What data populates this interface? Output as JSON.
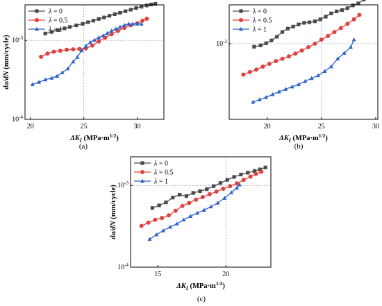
{
  "figure": {
    "captions": [
      "(a)",
      "(b)",
      "(c)"
    ]
  },
  "chart_data": [
    {
      "type": "line",
      "panel": "(a)",
      "xlabel": "ΔK_I (MPa·m^1/2)",
      "ylabel": "da/dN (mm/cycle)",
      "xlim": [
        19.5,
        32.5
      ],
      "ylim_log10": [
        -4,
        -2.55
      ],
      "yscale": "log",
      "xticks": [
        20,
        25,
        30
      ],
      "yticks": [
        {
          "value": 0.0001,
          "base": "10",
          "exp": "-4"
        },
        {
          "value": 0.001,
          "base": "10",
          "exp": "-3"
        }
      ],
      "grid": "dashed reference lines at x=25 and y=1e-3",
      "legend_position": "top-left",
      "series": [
        {
          "name": "λ = 0",
          "color": "#4a4a4a",
          "marker": "square",
          "x": [
            21.4,
            22.0,
            22.6,
            23.2,
            23.7,
            24.3,
            24.9,
            25.4,
            25.9,
            26.4,
            26.9,
            27.4,
            27.9,
            28.4,
            28.9,
            29.4,
            29.9,
            30.4,
            30.9,
            31.3,
            31.7
          ],
          "y": [
            0.00122,
            0.00128,
            0.00135,
            0.00142,
            0.00148,
            0.00155,
            0.00162,
            0.0017,
            0.00178,
            0.00187,
            0.00195,
            0.00205,
            0.00215,
            0.00224,
            0.00234,
            0.00245,
            0.00257,
            0.00267,
            0.00277,
            0.00285,
            0.0029
          ]
        },
        {
          "name": "λ = 0.5",
          "color": "#e0403f",
          "marker": "circle",
          "x": [
            21.0,
            21.6,
            22.2,
            22.8,
            23.4,
            24.0,
            24.6,
            25.2,
            25.8,
            26.4,
            27.0,
            27.6,
            28.2,
            28.8,
            29.4,
            30.0,
            30.5,
            30.9
          ],
          "y": [
            0.00062,
            0.00068,
            0.00072,
            0.00074,
            0.00076,
            0.00077,
            0.00078,
            0.00079,
            0.00086,
            0.00097,
            0.00108,
            0.0012,
            0.00132,
            0.00144,
            0.00155,
            0.00165,
            0.00178,
            0.00188
          ]
        },
        {
          "name": "λ = 1",
          "color": "#2e62c9",
          "marker": "triangle",
          "x": [
            20.2,
            20.8,
            21.4,
            22.0,
            22.5,
            23.0,
            23.5,
            24.0,
            24.4,
            24.8,
            25.2,
            25.6,
            26.0,
            26.4,
            26.8,
            27.2,
            27.6,
            28.0,
            28.4,
            28.8,
            29.2,
            29.6,
            30.0,
            30.4
          ],
          "y": [
            0.000277,
            0.000296,
            0.000318,
            0.000334,
            0.000353,
            0.000392,
            0.000439,
            0.000536,
            0.000614,
            0.000745,
            0.000853,
            0.000942,
            0.001011,
            0.001085,
            0.001147,
            0.001231,
            0.00132,
            0.001396,
            0.001476,
            0.00156,
            0.00162,
            0.00162,
            0.00162,
            0.00162
          ]
        }
      ]
    },
    {
      "type": "line",
      "panel": "(b)",
      "xlabel": "ΔK_I (MPa·m^1/2)",
      "ylabel": "",
      "xlim": [
        16.5,
        30.2
      ],
      "ylim_log10": [
        -3.78,
        -2.6
      ],
      "yscale": "log",
      "xticks": [
        20,
        25,
        30
      ],
      "yticks": [
        {
          "value": 0.001,
          "base": "10",
          "exp": "-3"
        }
      ],
      "grid": "dashed reference lines at x=25 and y=1e-3",
      "legend_position": "top-left",
      "series": [
        {
          "name": "λ = 0",
          "color": "#4a4a4a",
          "marker": "square",
          "x": [
            18.8,
            19.4,
            19.9,
            20.4,
            20.9,
            21.4,
            21.9,
            22.4,
            22.9,
            23.4,
            23.9,
            24.4,
            24.9,
            25.4,
            25.9,
            26.4,
            26.9,
            27.4,
            27.9,
            28.4,
            28.9,
            29.4
          ],
          "y": [
            0.00093,
            0.00096,
            0.00101,
            0.00108,
            0.00118,
            0.00132,
            0.00143,
            0.0015,
            0.00158,
            0.00164,
            0.00166,
            0.0017,
            0.00178,
            0.0019,
            0.00205,
            0.00215,
            0.00222,
            0.00232,
            0.00248,
            0.0026,
            0.00285,
            0.0032
          ]
        },
        {
          "name": "λ = 0.5",
          "color": "#e0403f",
          "marker": "circle",
          "x": [
            17.8,
            18.4,
            19.0,
            19.6,
            20.2,
            20.8,
            21.4,
            22.0,
            22.6,
            23.2,
            23.8,
            24.4,
            25.0,
            25.6,
            26.2,
            26.8,
            27.4,
            28.0,
            28.5
          ],
          "y": [
            0.00048,
            0.00051,
            0.00054,
            0.00058,
            0.00062,
            0.00066,
            0.0007,
            0.00074,
            0.00079,
            0.00085,
            0.00092,
            0.001,
            0.0011,
            0.0012,
            0.00132,
            0.00145,
            0.0016,
            0.00178,
            0.00198
          ]
        },
        {
          "name": "λ = 1",
          "color": "#2e62c9",
          "marker": "triangle",
          "x": [
            18.7,
            19.3,
            19.9,
            20.5,
            21.1,
            21.7,
            22.3,
            22.9,
            23.5,
            24.1,
            24.7,
            25.3,
            25.9,
            26.5,
            27.1,
            27.7,
            28.0
          ],
          "y": [
            0.00025,
            0.000265,
            0.00028,
            0.0003,
            0.00032,
            0.00034,
            0.00036,
            0.00038,
            0.00041,
            0.00044,
            0.00047,
            0.00052,
            0.00058,
            0.0007,
            0.0008,
            0.00092,
            0.0011
          ]
        }
      ]
    },
    {
      "type": "line",
      "panel": "(c)",
      "xlabel": "ΔK_I (MPa·m^1/2)",
      "ylabel": "da/dN (mm/cycle)",
      "xlim": [
        13.0,
        23.3
      ],
      "ylim_log10": [
        -4,
        -2.65
      ],
      "yscale": "log",
      "xticks": [
        15,
        20
      ],
      "yticks": [
        {
          "value": 0.0001,
          "base": "10",
          "exp": "-4"
        },
        {
          "value": 0.001,
          "base": "10",
          "exp": "-3"
        }
      ],
      "grid": "dashed reference lines at x=20 and y=1e-3",
      "legend_position": "top-left",
      "series": [
        {
          "name": "λ = 0",
          "color": "#4a4a4a",
          "marker": "square",
          "x": [
            14.6,
            15.1,
            15.6,
            16.1,
            16.6,
            17.1,
            17.6,
            18.1,
            18.6,
            19.1,
            19.6,
            20.1,
            20.6,
            21.1,
            21.6,
            22.1,
            22.5,
            22.9
          ],
          "y": [
            0.00053,
            0.00057,
            0.00062,
            0.00071,
            0.00077,
            0.00074,
            0.00081,
            0.00085,
            0.0009,
            0.00098,
            0.00107,
            0.00117,
            0.00127,
            0.00136,
            0.00143,
            0.0015,
            0.00157,
            0.00166
          ]
        },
        {
          "name": "λ = 0.5",
          "color": "#e0403f",
          "marker": "circle",
          "x": [
            13.8,
            14.3,
            14.8,
            15.3,
            15.8,
            16.3,
            16.8,
            17.3,
            17.8,
            18.3,
            18.8,
            19.3,
            19.8,
            20.3,
            20.8,
            21.3,
            21.8,
            22.2,
            22.6
          ],
          "y": [
            0.00032,
            0.00035,
            0.00038,
            0.0004,
            0.00043,
            0.00049,
            0.00056,
            0.00061,
            0.00067,
            0.00072,
            0.00078,
            0.00084,
            0.00091,
            0.00098,
            0.00106,
            0.00117,
            0.00128,
            0.00138,
            0.00147
          ]
        },
        {
          "name": "λ = 1",
          "color": "#2e62c9",
          "marker": "triangle",
          "x": [
            14.4,
            14.9,
            15.4,
            15.9,
            16.4,
            16.9,
            17.4,
            17.9,
            18.4,
            18.9,
            19.4,
            19.9,
            20.4,
            20.8,
            21.0
          ],
          "y": [
            0.00022,
            0.00025,
            0.00028,
            0.00031,
            0.00034,
            0.00038,
            0.00042,
            0.00046,
            0.0005,
            0.00055,
            0.00061,
            0.0007,
            0.00082,
            0.00093,
            0.00102
          ]
        }
      ]
    }
  ]
}
